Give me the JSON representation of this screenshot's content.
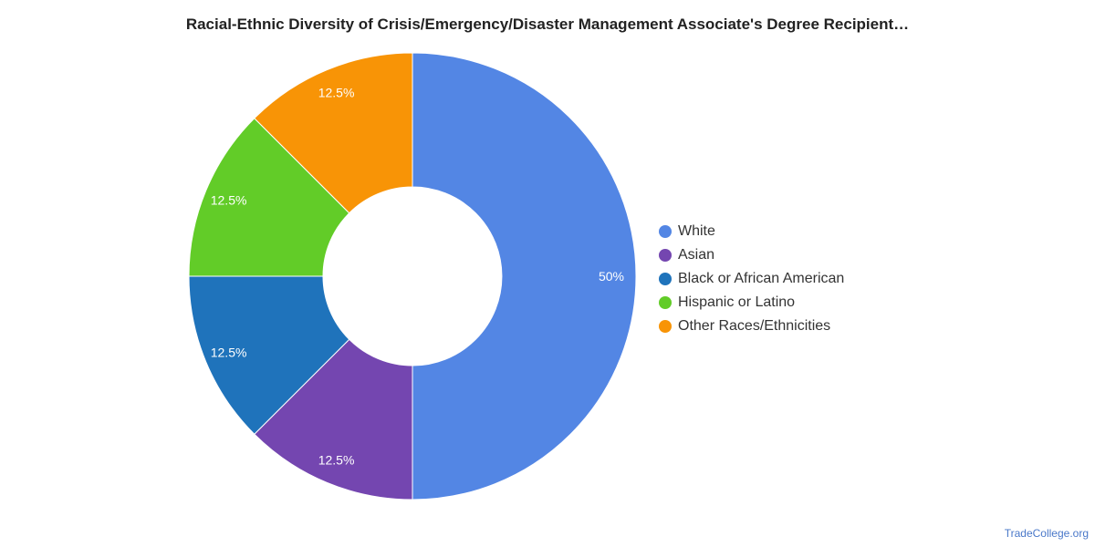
{
  "chart_data": {
    "type": "pie",
    "title": "Racial-Ethnic Diversity of Crisis/Emergency/Disaster Management Associate's Degree Recipient…",
    "donut": true,
    "legend_position": "right",
    "categories": [
      "White",
      "Asian",
      "Black or African American",
      "Hispanic or Latino",
      "Other Races/Ethnicities"
    ],
    "values": [
      50,
      12.5,
      12.5,
      12.5,
      12.5
    ],
    "data_labels": [
      "50%",
      "12.5%",
      "12.5%",
      "12.5%",
      "12.5%"
    ],
    "colors": [
      "#5386e4",
      "#7446b0",
      "#1f73bb",
      "#62cc28",
      "#f89406"
    ]
  },
  "footer": {
    "source": "TradeCollege.org"
  }
}
